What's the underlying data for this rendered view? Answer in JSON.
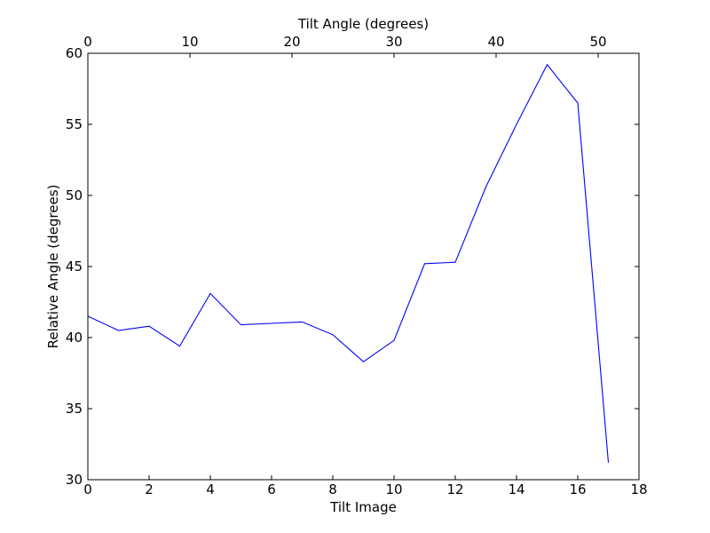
{
  "chart_data": {
    "type": "line",
    "title": "",
    "xlabel": "Tilt Image",
    "ylabel": "Relative Angle (degrees)",
    "x2label": "Tilt Angle (degrees)",
    "xlim": [
      0,
      18
    ],
    "ylim": [
      30,
      60
    ],
    "x2lim": [
      0,
      54
    ],
    "xticks": [
      0,
      2,
      4,
      6,
      8,
      10,
      12,
      14,
      16,
      18
    ],
    "yticks": [
      30,
      35,
      40,
      45,
      50,
      55,
      60
    ],
    "x2ticks": [
      0,
      10,
      20,
      30,
      40,
      50
    ],
    "grid": false,
    "line_color": "#0000ff",
    "series": [
      {
        "x": [
          0,
          1,
          2,
          3,
          4,
          5,
          6,
          7,
          8,
          9,
          10,
          11,
          12,
          13,
          14,
          15,
          16,
          17
        ],
        "y": [
          41.5,
          40.5,
          40.8,
          39.4,
          43.1,
          40.9,
          41.0,
          41.1,
          40.2,
          38.3,
          39.8,
          45.2,
          45.3,
          50.6,
          55.0,
          59.2,
          56.5,
          31.2
        ]
      }
    ]
  }
}
